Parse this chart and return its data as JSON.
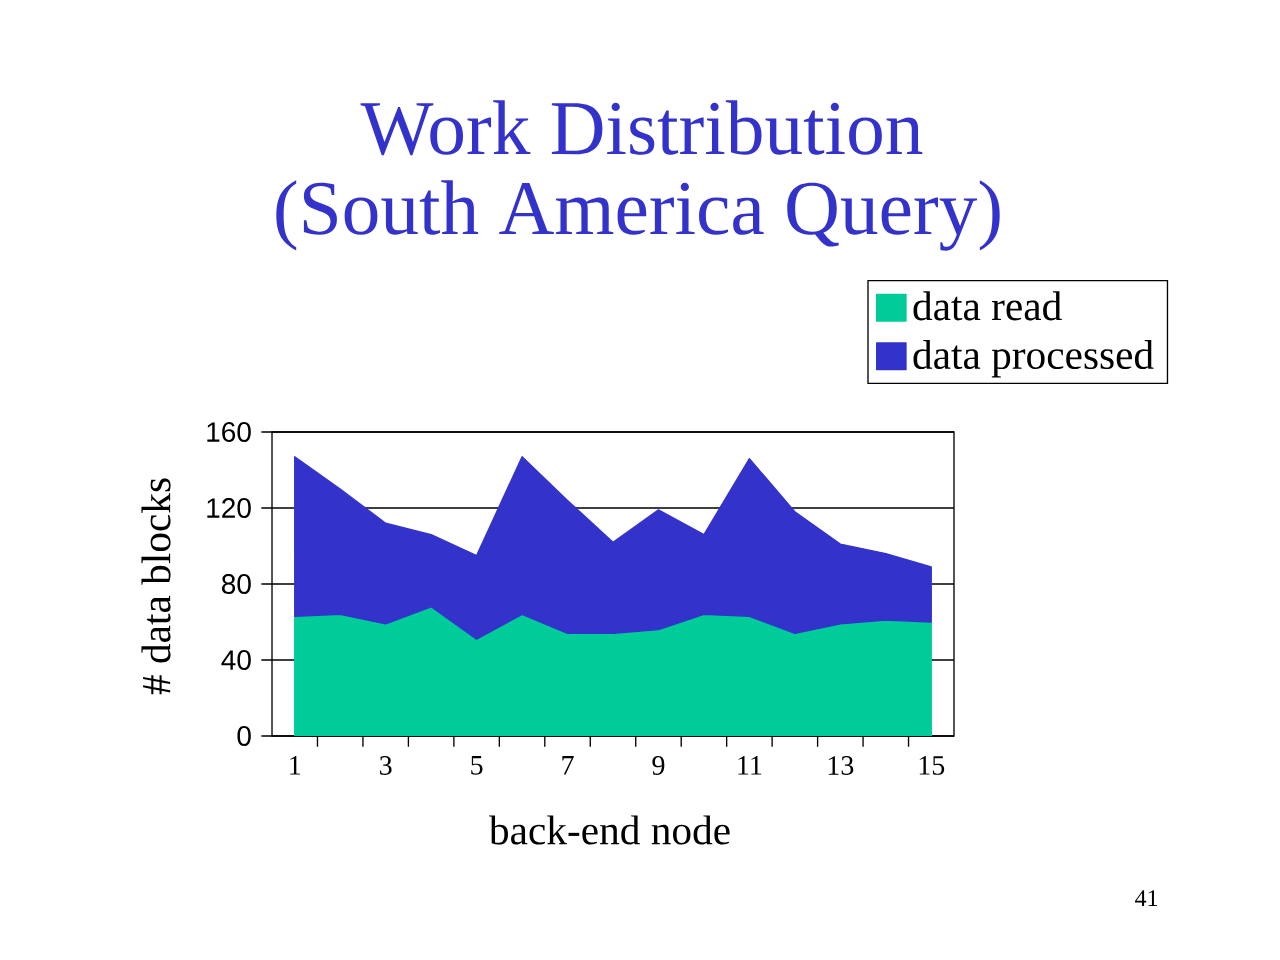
{
  "chart_data": {
    "type": "area",
    "title": "Work Distribution",
    "subtitle": "(South America Query)",
    "xlabel": "back-end node",
    "ylabel": "# data blocks",
    "categories": [
      "1",
      null,
      "3",
      null,
      "5",
      null,
      "7",
      null,
      "9",
      null,
      "11",
      null,
      "13",
      null,
      "15"
    ],
    "series": [
      {
        "name": "data read",
        "color": "#00cc99",
        "values": [
          63,
          64,
          59,
          68,
          51,
          64,
          54,
          54,
          56,
          64,
          63,
          54,
          59,
          61,
          60
        ]
      },
      {
        "name": "data processed",
        "color": "#3333cc",
        "values": [
          147,
          130,
          112,
          106,
          95,
          147,
          124,
          102,
          119,
          106,
          146,
          118,
          101,
          96,
          89
        ]
      }
    ],
    "ylim": [
      0,
      160
    ],
    "yticks": [
      0,
      40,
      80,
      120,
      160
    ],
    "grid": "y",
    "legend": "top right",
    "annotations": [
      "41"
    ]
  }
}
